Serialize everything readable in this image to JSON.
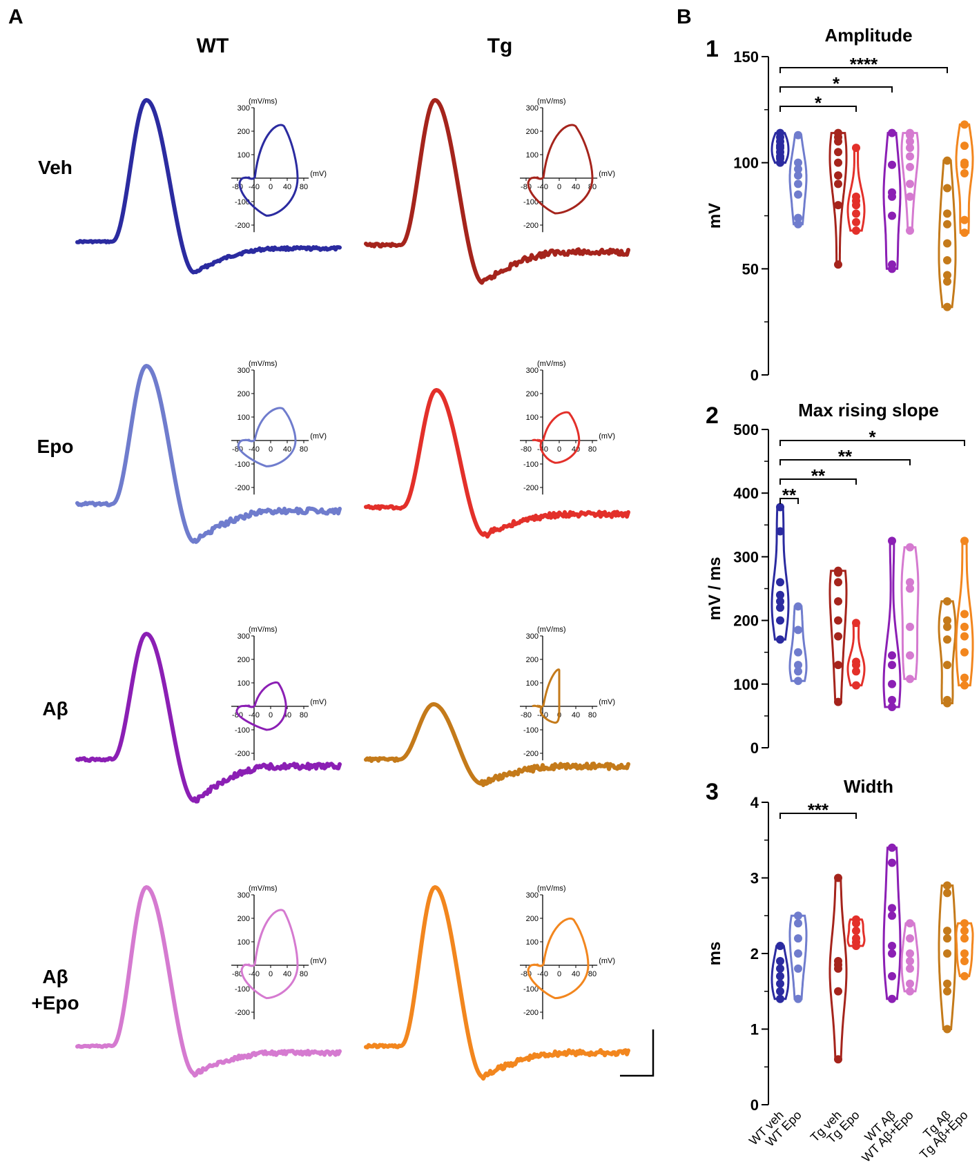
{
  "figure": {
    "panel_a_label": "A",
    "panel_b_label": "B",
    "columns": [
      "WT",
      "Tg"
    ],
    "rows": [
      {
        "label_lines": [
          "Veh"
        ],
        "wt_color": "#2b2ba0",
        "tg_color": "#a5241c"
      },
      {
        "label_lines": [
          "Epo"
        ],
        "wt_color": "#6f7ccd",
        "tg_color": "#e3302a"
      },
      {
        "label_lines": [
          "Aβ"
        ],
        "wt_color": "#8b1fb4",
        "tg_color": "#c47a1a"
      },
      {
        "label_lines": [
          "Aβ",
          "+Epo"
        ],
        "wt_color": "#d57ad0",
        "tg_color": "#f2861e"
      }
    ],
    "phase_plot": {
      "y_unit": "(mV/ms)",
      "x_unit": "(mV)",
      "x_ticks": [
        "-80",
        "-40",
        "0",
        "40",
        "80"
      ],
      "y_ticks": [
        "300",
        "200",
        "100",
        "-100",
        "-200"
      ]
    }
  },
  "chart_data": [
    {
      "type": "violin",
      "number": "1",
      "title": "Amplitude",
      "ylabel": "mV",
      "ylim": [
        0,
        150
      ],
      "yticks": [
        0,
        50,
        100,
        150
      ],
      "categories": [
        "WT veh",
        "WT Epo",
        "Tg veh",
        "Tg Epo",
        "WT Aβ",
        "WT Aβ+Epo",
        "Tg Aβ",
        "Tg Aβ+Epo"
      ],
      "series": [
        {
          "name": "WT veh",
          "color": "#2b2ba0",
          "values": [
            100,
            103,
            105,
            108,
            110,
            112,
            114,
            102,
            107
          ]
        },
        {
          "name": "WT Epo",
          "color": "#6f7ccd",
          "values": [
            71,
            74,
            85,
            90,
            94,
            97,
            100,
            113
          ]
        },
        {
          "name": "Tg veh",
          "color": "#a5241c",
          "values": [
            52,
            80,
            90,
            94,
            100,
            105,
            110,
            112,
            114
          ]
        },
        {
          "name": "Tg Epo",
          "color": "#e3302a",
          "values": [
            68,
            72,
            76,
            80,
            82,
            84,
            107
          ]
        },
        {
          "name": "WT Aβ",
          "color": "#8b1fb4",
          "values": [
            50,
            52,
            75,
            84,
            86,
            99,
            114
          ]
        },
        {
          "name": "WT Aβ+Epo",
          "color": "#d57ad0",
          "values": [
            68,
            84,
            90,
            98,
            103,
            107,
            110,
            113,
            114
          ]
        },
        {
          "name": "Tg Aβ",
          "color": "#c47a1a",
          "values": [
            32,
            44,
            47,
            54,
            62,
            71,
            76,
            88,
            101
          ]
        },
        {
          "name": "Tg Aβ+Epo",
          "color": "#f2861e",
          "values": [
            67,
            73,
            95,
            99,
            100,
            108,
            118
          ]
        }
      ],
      "significance": [
        {
          "from": 0,
          "to": 6,
          "label": "****"
        },
        {
          "from": 0,
          "to": 4,
          "label": "*"
        },
        {
          "from": 0,
          "to": 3,
          "label": "*"
        }
      ]
    },
    {
      "type": "violin",
      "number": "2",
      "title": "Max rising slope",
      "ylabel": "mV / ms",
      "ylim": [
        0,
        500
      ],
      "yticks": [
        0,
        100,
        200,
        300,
        400,
        500
      ],
      "categories": [
        "WT veh",
        "WT Epo",
        "Tg veh",
        "Tg Epo",
        "WT Aβ",
        "WT Aβ+Epo",
        "Tg Aβ",
        "Tg Aβ+Epo"
      ],
      "series": [
        {
          "name": "WT veh",
          "color": "#2b2ba0",
          "values": [
            170,
            200,
            220,
            230,
            240,
            260,
            340,
            378
          ]
        },
        {
          "name": "WT Epo",
          "color": "#6f7ccd",
          "values": [
            105,
            120,
            130,
            150,
            185,
            222
          ]
        },
        {
          "name": "Tg veh",
          "color": "#a5241c",
          "values": [
            72,
            130,
            175,
            200,
            230,
            260,
            275,
            278
          ]
        },
        {
          "name": "Tg Epo",
          "color": "#e3302a",
          "values": [
            98,
            120,
            130,
            135,
            196
          ]
        },
        {
          "name": "WT Aβ",
          "color": "#8b1fb4",
          "values": [
            64,
            75,
            100,
            130,
            145,
            325
          ]
        },
        {
          "name": "WT Aβ+Epo",
          "color": "#d57ad0",
          "values": [
            108,
            145,
            190,
            250,
            260,
            315
          ]
        },
        {
          "name": "Tg Aβ",
          "color": "#c47a1a",
          "values": [
            70,
            75,
            130,
            170,
            190,
            200,
            230
          ]
        },
        {
          "name": "Tg Aβ+Epo",
          "color": "#f2861e",
          "values": [
            98,
            110,
            150,
            175,
            190,
            210,
            325
          ]
        }
      ],
      "significance": [
        {
          "from": 0,
          "to": 7,
          "label": "*"
        },
        {
          "from": 0,
          "to": 5,
          "label": "**"
        },
        {
          "from": 0,
          "to": 3,
          "label": "**"
        },
        {
          "from": 0,
          "to": 1,
          "label": "**"
        }
      ]
    },
    {
      "type": "violin",
      "number": "3",
      "title": "Width",
      "ylabel": "ms",
      "ylim": [
        0,
        4
      ],
      "yticks": [
        0,
        1,
        2,
        3,
        4
      ],
      "categories": [
        "WT veh",
        "WT Epo",
        "Tg veh",
        "Tg Epo",
        "WT Aβ",
        "WT Aβ+Epo",
        "Tg Aβ",
        "Tg Aβ+Epo"
      ],
      "series": [
        {
          "name": "WT veh",
          "color": "#2b2ba0",
          "values": [
            1.4,
            1.5,
            1.6,
            1.7,
            1.8,
            1.9,
            2.1
          ]
        },
        {
          "name": "WT Epo",
          "color": "#6f7ccd",
          "values": [
            1.4,
            1.8,
            2.0,
            2.2,
            2.4,
            2.5
          ]
        },
        {
          "name": "Tg veh",
          "color": "#a5241c",
          "values": [
            0.6,
            1.5,
            1.8,
            1.85,
            1.9,
            3.0
          ]
        },
        {
          "name": "Tg Epo",
          "color": "#e3302a",
          "values": [
            2.1,
            2.15,
            2.2,
            2.3,
            2.4,
            2.45
          ]
        },
        {
          "name": "WT Aβ",
          "color": "#8b1fb4",
          "values": [
            1.4,
            1.7,
            2.0,
            2.1,
            2.5,
            2.6,
            3.2,
            3.4
          ]
        },
        {
          "name": "WT Aβ+Epo",
          "color": "#d57ad0",
          "values": [
            1.5,
            1.6,
            1.8,
            1.9,
            2.0,
            2.2,
            2.4
          ]
        },
        {
          "name": "Tg Aβ",
          "color": "#c47a1a",
          "values": [
            1.0,
            1.5,
            1.6,
            2.0,
            2.2,
            2.3,
            2.8,
            2.9
          ]
        },
        {
          "name": "Tg Aβ+Epo",
          "color": "#f2861e",
          "values": [
            1.7,
            1.9,
            2.0,
            2.2,
            2.3,
            2.4
          ]
        }
      ],
      "significance": [
        {
          "from": 0,
          "to": 3,
          "label": "***"
        }
      ]
    }
  ]
}
